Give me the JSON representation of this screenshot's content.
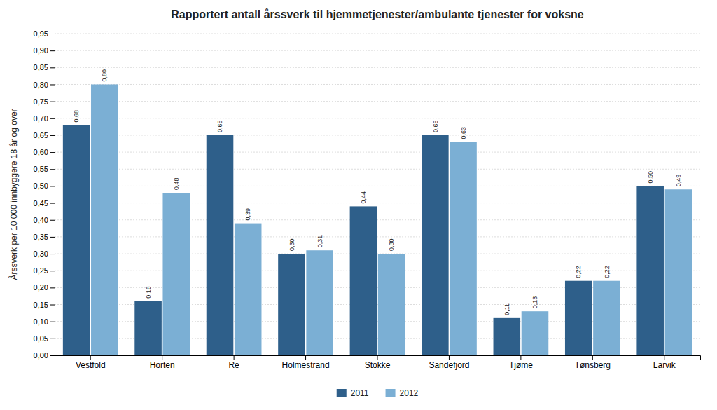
{
  "chart_data": {
    "type": "bar",
    "title": "Rapportert antall årssverk til hjemmetjenester/ambulante tjenester for voksne",
    "ylabel": "Årssverk per 10 000 innbyggere 18 år og over",
    "categories": [
      "Vestfold",
      "Horten",
      "Re",
      "Holmestrand",
      "Stokke",
      "Sandefjord",
      "Tjøme",
      "Tønsberg",
      "Larvik"
    ],
    "series": [
      {
        "name": "2011",
        "color": "#2e5f8a",
        "values": [
          0.68,
          0.16,
          0.65,
          0.3,
          0.44,
          0.65,
          0.11,
          0.22,
          0.5
        ],
        "value_labels": [
          "0,68",
          "0,16",
          "0,65",
          "0,30",
          "0,44",
          "0,65",
          "0,11",
          "0,22",
          "0,50"
        ]
      },
      {
        "name": "2012",
        "color": "#7bafd4",
        "values": [
          0.8,
          0.48,
          0.39,
          0.31,
          0.3,
          0.63,
          0.13,
          0.22,
          0.49
        ],
        "value_labels": [
          "0,80",
          "0,48",
          "0,39",
          "0,31",
          "0,30",
          "0,63",
          "0,13",
          "0,22",
          "0,49"
        ]
      }
    ],
    "ylim": [
      0.0,
      0.95
    ],
    "yticks": [
      {
        "value": 0.0,
        "label": "0,00"
      },
      {
        "value": 0.05,
        "label": "0,05"
      },
      {
        "value": 0.1,
        "label": "0,10"
      },
      {
        "value": 0.15,
        "label": "0,15"
      },
      {
        "value": 0.2,
        "label": "0,20"
      },
      {
        "value": 0.25,
        "label": "0,25"
      },
      {
        "value": 0.3,
        "label": "0,30"
      },
      {
        "value": 0.35,
        "label": "0,35"
      },
      {
        "value": 0.4,
        "label": "0,40"
      },
      {
        "value": 0.45,
        "label": "0,45"
      },
      {
        "value": 0.5,
        "label": "0,50"
      },
      {
        "value": 0.55,
        "label": "0,55"
      },
      {
        "value": 0.6,
        "label": "0,60"
      },
      {
        "value": 0.65,
        "label": "0,65"
      },
      {
        "value": 0.7,
        "label": "0,70"
      },
      {
        "value": 0.75,
        "label": "0,75"
      },
      {
        "value": 0.8,
        "label": "0,80"
      },
      {
        "value": 0.85,
        "label": "0,85"
      },
      {
        "value": 0.9,
        "label": "0,90"
      },
      {
        "value": 0.95,
        "label": "0,95"
      }
    ],
    "grid": true,
    "legend": "bottom",
    "data_labels": true
  }
}
